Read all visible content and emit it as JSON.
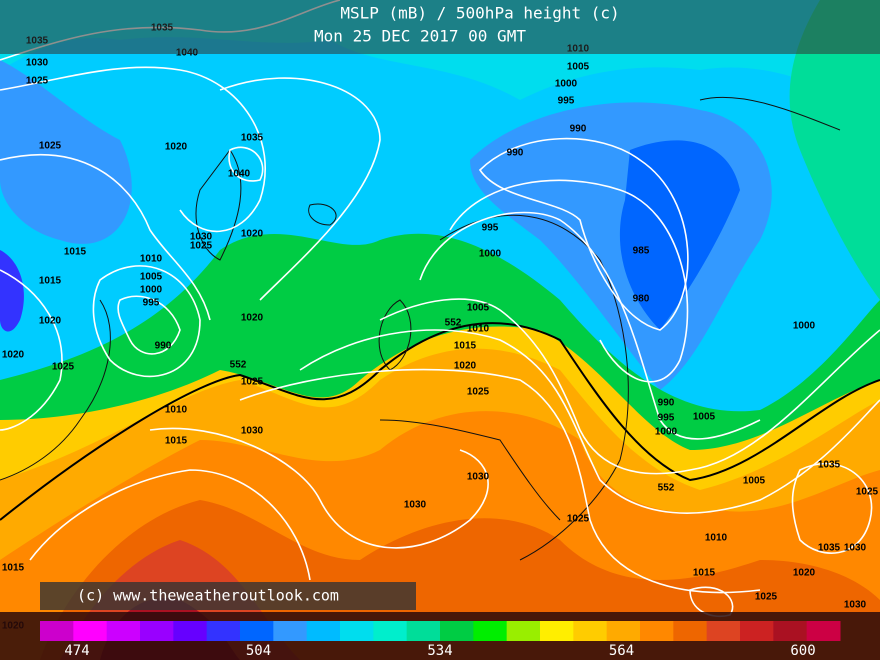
{
  "header": {
    "title": "MSLP (mB) / 500hPa height (c)",
    "date": "Mon 25 DEC 2017 00 GMT"
  },
  "copyright": "(c) www.theweatheroutlook.com",
  "colorbar": {
    "colors": [
      "#cc00cc",
      "#ff00ff",
      "#cc00ff",
      "#9900ff",
      "#6600ff",
      "#3333ff",
      "#0066ff",
      "#3399ff",
      "#00bbff",
      "#00ddee",
      "#00eecc",
      "#00dd99",
      "#00cc44",
      "#00ee00",
      "#99ee00",
      "#ffee00",
      "#ffcc00",
      "#ffaa00",
      "#ff8800",
      "#ee6600",
      "#dd4422",
      "#cc2222",
      "#aa1122",
      "#cc0044"
    ],
    "labels": [
      474,
      504,
      534,
      564,
      600
    ]
  },
  "isobar_labels": [
    "1035",
    "1035",
    "1040",
    "1030",
    "1025",
    "1025",
    "1020",
    "1035",
    "1040",
    "1030",
    "1025",
    "1020",
    "1015",
    "1010",
    "1005",
    "1000",
    "995",
    "990",
    "1015",
    "1020",
    "1020",
    "1025",
    "1020",
    "552",
    "1025",
    "1010",
    "1015",
    "1030",
    "990",
    "1005",
    "1000",
    "995",
    "990",
    "995",
    "1000",
    "985",
    "980",
    "1005",
    "552",
    "1010",
    "1015",
    "1020",
    "1025",
    "1030",
    "1030",
    "1025",
    "990",
    "995",
    "1000",
    "1005",
    "552",
    "1005",
    "1010",
    "1015",
    "1020",
    "1025",
    "1035",
    "1025",
    "1035",
    "1030",
    "1030",
    "1000",
    "1010",
    "1015",
    "1020"
  ]
}
